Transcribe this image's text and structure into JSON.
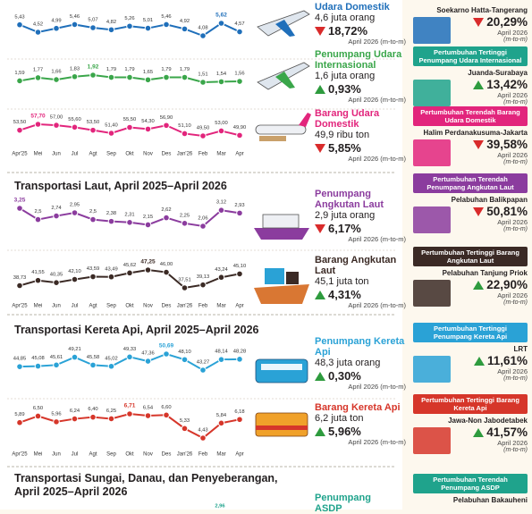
{
  "chart_data": [
    {
      "type": "line",
      "title": "Udara Domestik",
      "color": "#1f6fba",
      "values": [
        5.43,
        4.52,
        4.99,
        5.46,
        5.07,
        4.82,
        5.26,
        5.01,
        5.46,
        4.92,
        4.08,
        5.62,
        4.57
      ],
      "value_labels": [
        "5,43",
        "4,52",
        "4,99",
        "5,46",
        "5,07",
        "4,82",
        "5,26",
        "5,01",
        "5,46",
        "4,92",
        "4,08",
        "5,62",
        "4,57"
      ],
      "figure": "4,6 juta orang",
      "change": "18,72%",
      "trend": "down",
      "period": "April 2026 (m-to-m)"
    },
    {
      "type": "line",
      "title": "Penumpang Udara Internasional",
      "color": "#3aa64a",
      "values": [
        1.59,
        1.77,
        1.66,
        1.83,
        1.92,
        1.79,
        1.79,
        1.65,
        1.79,
        1.79,
        1.51,
        1.54,
        1.56
      ],
      "value_labels": [
        "1,59",
        "1,77",
        "1,66",
        "1,83",
        "1,92",
        "1,79",
        "1,79",
        "1,65",
        "1,79",
        "1,79",
        "1,51",
        "1,54",
        "1,56"
      ],
      "figure": "1,6 juta orang",
      "change": "0,93%",
      "trend": "up",
      "period": "April 2026 (m-to-m)"
    },
    {
      "type": "line",
      "title": "Barang Udara Domestik",
      "color": "#e2257c",
      "categories": [
        "Apr'25",
        "Mei",
        "Jun",
        "Jul",
        "Agt",
        "Sep",
        "Okt",
        "Nov",
        "Des",
        "Jan'26",
        "Feb",
        "Mar",
        "Apr"
      ],
      "values": [
        53.5,
        57.7,
        57.0,
        55.6,
        53.5,
        51.4,
        55.5,
        54.3,
        56.9,
        51.1,
        49.5,
        53.0,
        49.9
      ],
      "value_labels": [
        "53,50",
        "57,70",
        "57,00",
        "55,60",
        "53,50",
        "51,40",
        "55,50",
        "54,30",
        "56,90",
        "51,10",
        "49,50",
        "53,00",
        "49,90"
      ],
      "figure": "49,9 ribu ton",
      "change": "5,85%",
      "trend": "down",
      "period": "April 2026 (m-to-m)"
    },
    {
      "type": "line",
      "title": "Penumpang Angkutan Laut",
      "color": "#8b3c9e",
      "values": [
        3.25,
        2.5,
        2.74,
        2.95,
        2.5,
        2.38,
        2.31,
        2.15,
        2.62,
        2.25,
        2.06,
        3.12,
        2.93
      ],
      "value_labels": [
        "3,25",
        "2,5",
        "2,74",
        "2,95",
        "2,5",
        "2,38",
        "2,31",
        "2,15",
        "2,62",
        "2,25",
        "2,06",
        "3,12",
        "2,93"
      ],
      "figure": "2,9 juta orang",
      "change": "6,17%",
      "trend": "down",
      "period": "April 2026 (m-to-m)"
    },
    {
      "type": "line",
      "title": "Barang Angkutan Laut",
      "color": "#3b2a25",
      "categories": [
        "Apr'25",
        "Mei",
        "Jun",
        "Jul",
        "Agt",
        "Sep",
        "Okt",
        "Nov",
        "Des",
        "Jan'26",
        "Feb",
        "Mar",
        "Apr"
      ],
      "values": [
        38.73,
        41.55,
        40.35,
        42.1,
        43.59,
        43.49,
        45.62,
        47.25,
        46.0,
        37.51,
        39.13,
        43.24,
        45.1
      ],
      "value_labels": [
        "38,73",
        "41,55",
        "40,35",
        "42,10",
        "43,59",
        "43,49",
        "45,62",
        "47,25",
        "46,00",
        "37,51",
        "39,13",
        "43,24",
        "45,10"
      ],
      "figure": "45,1 juta ton",
      "change": "4,31%",
      "trend": "up",
      "period": "April 2026 (m-to-m)"
    },
    {
      "type": "line",
      "title": "Penumpang Kereta Api",
      "color": "#2aa2d6",
      "values": [
        44.85,
        45.08,
        45.61,
        49.21,
        45.58,
        45.02,
        49.33,
        47.36,
        50.69,
        48.1,
        43.27,
        48.14,
        48.28
      ],
      "value_labels": [
        "44,85",
        "45,08",
        "45,61",
        "49,21",
        "45,58",
        "45,02",
        "49,33",
        "47,36",
        "50,69",
        "48,10",
        "43,27",
        "48,14",
        "48,28"
      ],
      "figure": "48,3 juta orang",
      "change": "0,30%",
      "trend": "up",
      "period": "April 2026 (m-to-m)"
    },
    {
      "type": "line",
      "title": "Barang Kereta Api",
      "color": "#d6362a",
      "categories": [
        "Apr'25",
        "Mei",
        "Jun",
        "Jul",
        "Agt",
        "Sep",
        "Okt",
        "Nov",
        "Des",
        "Jan'26",
        "Feb",
        "Mar",
        "Apr"
      ],
      "values": [
        5.89,
        6.5,
        5.96,
        6.24,
        6.4,
        6.25,
        6.71,
        6.54,
        6.6,
        5.33,
        4.43,
        5.84,
        6.18
      ],
      "value_labels": [
        "5,89",
        "6,50",
        "5,96",
        "6,24",
        "6,40",
        "6,25",
        "6,71",
        "6,54",
        "6,60",
        "5,33",
        "4,43",
        "5,84",
        "6,18"
      ],
      "figure": "6,2 juta ton",
      "change": "5,96%",
      "trend": "up",
      "period": "April 2026 (m-to-m)"
    }
  ],
  "section_titles": [
    "Transportasi Laut, April 2025–April 2026",
    "Transportasi Kereta Api, April 2025–April 2026",
    "Transportasi Sungai, Danau, dan Penyeberangan, April 2025–April 2026"
  ],
  "asdp": {
    "title": "Penumpang ASDP",
    "first_label": "2,96"
  },
  "highlights": [
    {
      "location": "Soekarno Hatta-Tangerang",
      "change": "20,29%",
      "trend": "down",
      "period": "April 2026",
      "note": "(m-to-m)",
      "color": "#1f6fba"
    },
    {
      "heading": "Pertumbuhan Tertinggi Penumpang Udara Internasional",
      "location": "Juanda-Surabaya",
      "change": "13,42%",
      "trend": "up",
      "period": "April 2026",
      "note": "(m-to-m)",
      "color": "#1fa38c"
    },
    {
      "heading": "Pertumbuhan Terendah Barang Udara Domestik",
      "location": "Halim Perdanakusuma-Jakarta",
      "change": "39,58%",
      "trend": "down",
      "period": "April 2026",
      "note": "(m-to-m)",
      "color": "#e2257c"
    },
    {
      "heading": "Pertumbuhan Terendah Penumpang Angkutan Laut",
      "location": "Pelabuhan Balikpapan",
      "change": "50,81%",
      "trend": "down",
      "period": "April 2026",
      "note": "(m-to-m)",
      "color": "#8b3c9e"
    },
    {
      "heading": "Pertumbuhan Tertinggi Barang Angkutan Laut",
      "location": "Pelabuhan Tanjung Priok",
      "change": "22,90%",
      "trend": "up",
      "period": "April 2026",
      "note": "(m-to-m)",
      "color": "#3b2a25"
    },
    {
      "heading": "Pertumbuhan Tertinggi Penumpang Kereta Api",
      "location": "LRT",
      "change": "11,61%",
      "trend": "up",
      "period": "April 2026",
      "note": "(m-to-m)",
      "color": "#2aa2d6"
    },
    {
      "heading": "Pertumbuhan Tertinggi Barang Kereta Api",
      "location": "Jawa-Non Jabodetabek",
      "change": "41,57%",
      "trend": "up",
      "period": "April 2026",
      "note": "(m-to-m)",
      "color": "#d6362a"
    },
    {
      "heading": "Pertumbuhan Terendah Penumpang ASDP",
      "location": "Pelabuhan Bakauheni",
      "color": "#1fa38c"
    }
  ]
}
